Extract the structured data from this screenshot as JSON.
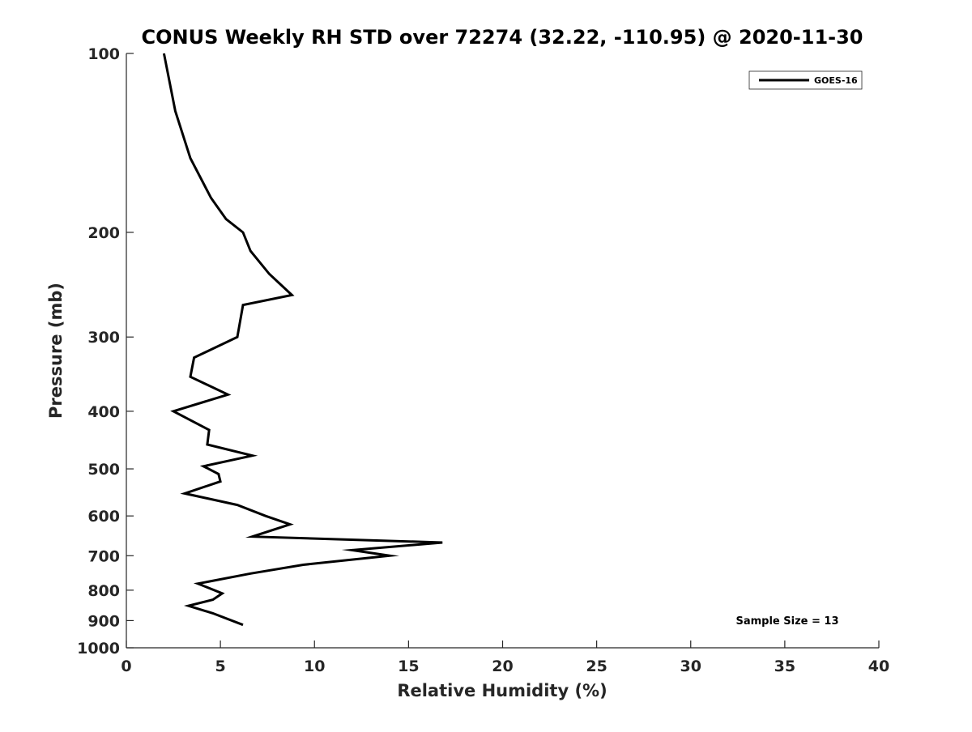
{
  "chart_data": {
    "type": "line",
    "title": "CONUS Weekly RH STD over 72274 (32.22, -110.95) @ 2020-11-30",
    "xlabel": "Relative Humidity (%)",
    "ylabel": "Pressure (mb)",
    "xlim": [
      0,
      40
    ],
    "ylim": [
      100,
      1000
    ],
    "y_scale": "log",
    "y_reversed": true,
    "x_ticks": [
      "0",
      "5",
      "10",
      "15",
      "20",
      "25",
      "30",
      "35",
      "40"
    ],
    "y_ticks": [
      "100",
      "200",
      "300",
      "400",
      "500",
      "600",
      "700",
      "800",
      "900",
      "1000"
    ],
    "grid": false,
    "legend_position": "top-right",
    "series": [
      {
        "name": "GOES-16",
        "color": "#000000",
        "x": [
          2.0,
          2.6,
          3.4,
          4.5,
          5.3,
          6.2,
          6.6,
          7.6,
          8.8,
          6.2,
          5.9,
          3.6,
          3.4,
          5.4,
          2.5,
          4.4,
          4.3,
          6.7,
          4.1,
          4.9,
          5.0,
          3.1,
          5.9,
          7.4,
          8.7,
          6.7,
          16.8,
          12.0,
          14.0,
          9.4,
          6.6,
          3.8,
          5.1,
          4.6,
          3.3,
          4.6,
          6.2
        ],
        "y": [
          100,
          125,
          150,
          175,
          190,
          200,
          215,
          235,
          255,
          265,
          300,
          325,
          350,
          375,
          400,
          430,
          455,
          475,
          495,
          510,
          525,
          550,
          575,
          600,
          620,
          650,
          665,
          685,
          700,
          725,
          750,
          780,
          810,
          830,
          850,
          875,
          915
        ]
      }
    ],
    "annotations": [
      "Sample Size = 13"
    ]
  }
}
